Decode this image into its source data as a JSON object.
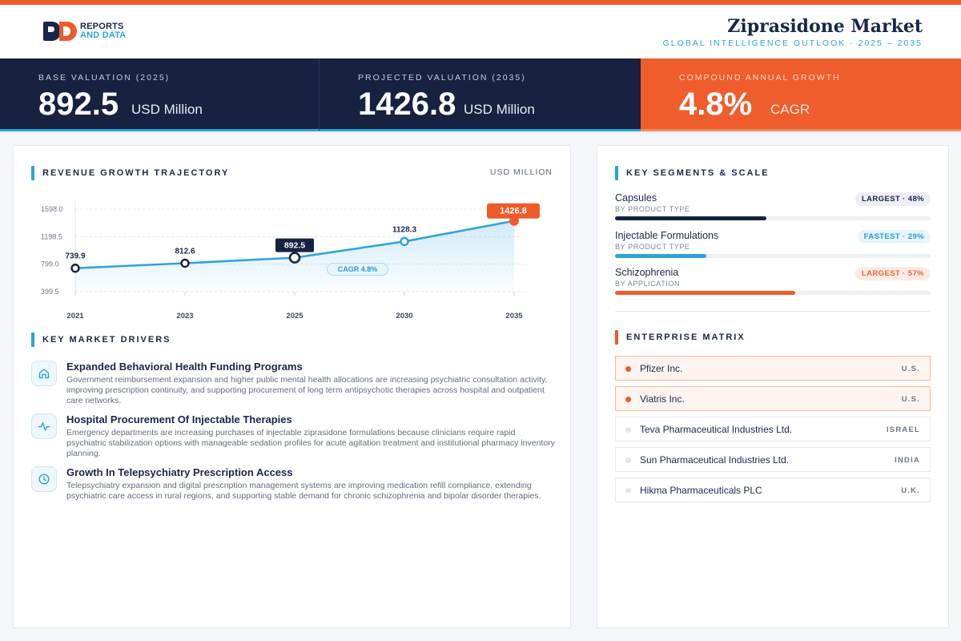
{
  "header": {
    "logo_line1": "REPORTS",
    "logo_line2": "AND DATA",
    "title": "Ziprasidone Market",
    "subtitle": "GLOBAL INTELLIGENCE OUTLOOK  ·  2025 – 2035"
  },
  "kpis": [
    {
      "label": "BASE VALUATION (2025)",
      "value": "892.5",
      "unit": "USD Million"
    },
    {
      "label": "PROJECTED VALUATION (2035)",
      "value": "1426.8",
      "unit": "USD Million"
    },
    {
      "label": "COMPOUND ANNUAL GROWTH",
      "value": "4.8%",
      "unit": "CAGR"
    }
  ],
  "chart_section": {
    "title": "REVENUE GROWTH TRAJECTORY",
    "unit": "USD MILLION"
  },
  "chart_data": {
    "type": "line",
    "title": "REVENUE GROWTH TRAJECTORY",
    "xlabel": "",
    "ylabel": "USD MILLION",
    "x": [
      "2021",
      "2023",
      "2025",
      "2030",
      "2035"
    ],
    "values": [
      739.9,
      812.6,
      892.5,
      1128.3,
      1426.8
    ],
    "value_labels": [
      "739.9",
      "812.6",
      "892.5",
      "1128.3",
      "1426.8"
    ],
    "y_ticks": [
      1598.0,
      1198.5,
      799.0,
      399.5
    ],
    "y_tick_labels": [
      "1598.0",
      "1198.5",
      "799.0",
      "399.5"
    ],
    "ylim": [
      399.5,
      1598.0
    ],
    "annotation": "CAGR 4.8%",
    "colors": {
      "line": "#2ea3d9",
      "highlight_dark": "#16223f",
      "highlight_accent": "#ee5b2b"
    },
    "grid": true
  },
  "drivers_section": {
    "title": "KEY MARKET DRIVERS"
  },
  "drivers": [
    {
      "icon": "home-icon",
      "title": "Expanded Behavioral Health Funding Programs",
      "desc": "Government reimbursement expansion and higher public mental health allocations are increasing psychiatric consultation activity, improving prescription continuity, and supporting procurement of long term antipsychotic therapies across hospital and outpatient care networks."
    },
    {
      "icon": "pulse-icon",
      "title": "Hospital Procurement Of Injectable Therapies",
      "desc": "Emergency departments are increasing purchases of injectable ziprasidone formulations because clinicians require rapid psychiatric stabilization options with manageable sedation profiles for acute agitation treatment and institutional pharmacy inventory planning."
    },
    {
      "icon": "clock-icon",
      "title": "Growth In Telepsychiatry Prescription Access",
      "desc": "Telepsychiatry expansion and digital prescription management systems are improving medication refill compliance, extending psychiatric care access in rural regions, and supporting stable demand for chronic schizophrenia and bipolar disorder therapies."
    }
  ],
  "segments_section": {
    "title": "KEY SEGMENTS & SCALE"
  },
  "segments": [
    {
      "name": "Capsules",
      "category": "BY PRODUCT TYPE",
      "badge": "LARGEST · 48%",
      "share": 0.48,
      "color": "#16223f",
      "badge_bg": "#eceef3",
      "badge_color": "#18264a"
    },
    {
      "name": "Injectable Formulations",
      "category": "BY PRODUCT TYPE",
      "badge": "FASTEST · 29%",
      "share": 0.29,
      "color": "#2ea3d9",
      "badge_bg": "#e6f4fb",
      "badge_color": "#2a9ad1"
    },
    {
      "name": "Schizophrenia",
      "category": "BY APPLICATION",
      "badge": "LARGEST · 57%",
      "share": 0.57,
      "color": "#ee5b2b",
      "badge_bg": "#fdece5",
      "badge_color": "#e8643a"
    }
  ],
  "enterprise_section": {
    "title": "ENTERPRISE MATRIX"
  },
  "enterprises": [
    {
      "name": "Pfizer Inc.",
      "country": "U.S.",
      "highlight": true
    },
    {
      "name": "Viatris Inc.",
      "country": "U.S.",
      "highlight": true
    },
    {
      "name": "Teva Pharmaceutical Industries Ltd.",
      "country": "ISRAEL",
      "highlight": false
    },
    {
      "name": "Sun Pharmaceutical Industries Ltd.",
      "country": "INDIA",
      "highlight": false
    },
    {
      "name": "Hikma Pharmaceuticals PLC",
      "country": "U.K.",
      "highlight": false
    }
  ]
}
